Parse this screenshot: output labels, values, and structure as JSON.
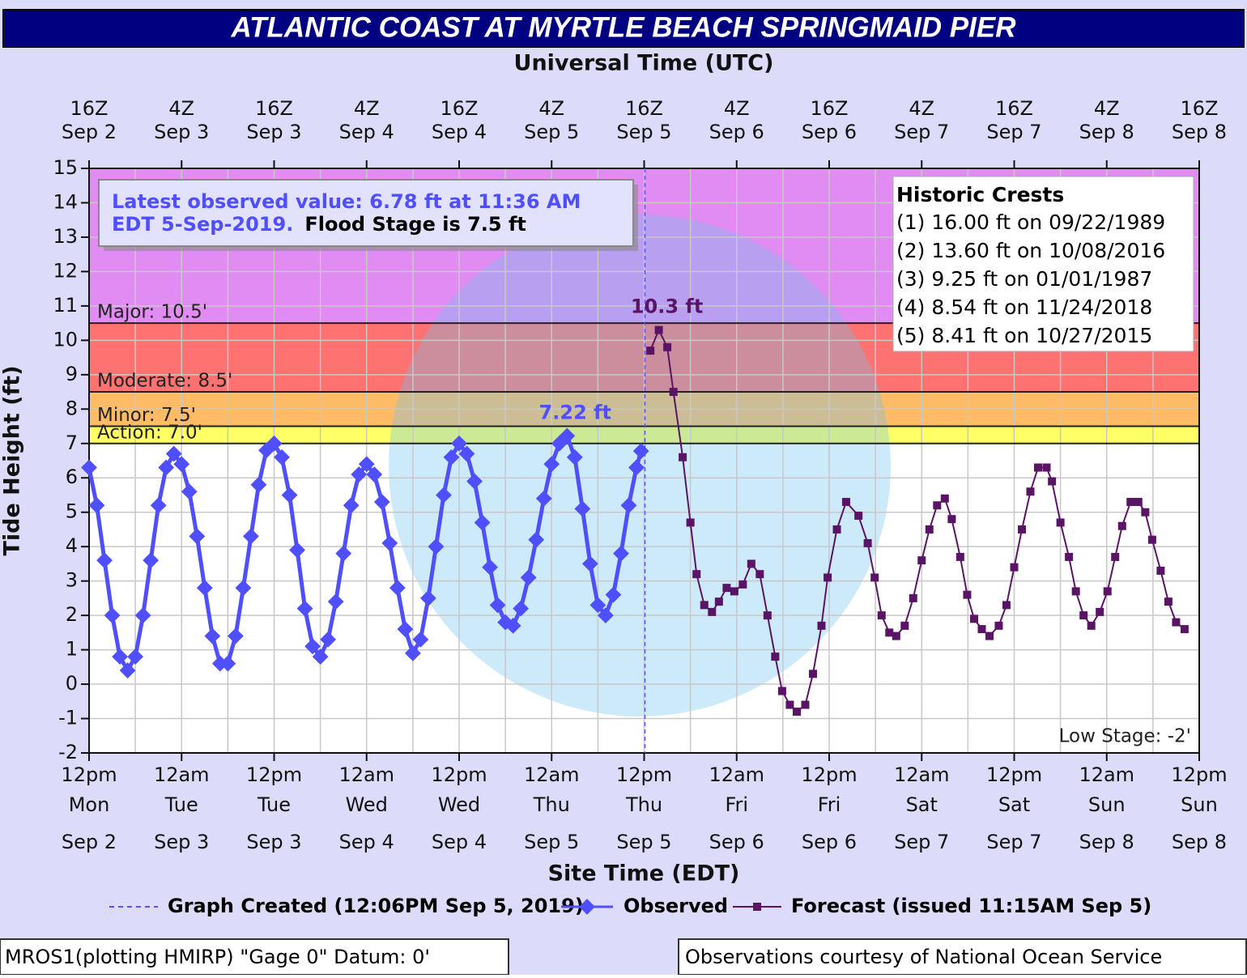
{
  "chart_data": {
    "type": "line",
    "title": "ATLANTIC COAST AT MYRTLE BEACH SPRINGMAID PIER",
    "x2_label": "Universal Time (UTC)",
    "x_label": "Site Time (EDT)",
    "y_label": "Tide Height (ft)",
    "xlim": [
      0,
      144
    ],
    "xticks": [
      {
        "value": 0,
        "label": [
          "12pm",
          "Mon",
          "Sep 2"
        ]
      },
      {
        "value": 12,
        "label": [
          "12am",
          "Tue",
          "Sep 3"
        ]
      },
      {
        "value": 24,
        "label": [
          "12pm",
          "Tue",
          "Sep 3"
        ]
      },
      {
        "value": 36,
        "label": [
          "12am",
          "Wed",
          "Sep 4"
        ]
      },
      {
        "value": 48,
        "label": [
          "12pm",
          "Wed",
          "Sep 4"
        ]
      },
      {
        "value": 60,
        "label": [
          "12am",
          "Thu",
          "Sep 5"
        ]
      },
      {
        "value": 72,
        "label": [
          "12pm",
          "Thu",
          "Sep 5"
        ]
      },
      {
        "value": 84,
        "label": [
          "12am",
          "Fri",
          "Sep 6"
        ]
      },
      {
        "value": 96,
        "label": [
          "12pm",
          "Fri",
          "Sep 6"
        ]
      },
      {
        "value": 108,
        "label": [
          "12am",
          "Sat",
          "Sep 7"
        ]
      },
      {
        "value": 120,
        "label": [
          "12pm",
          "Sat",
          "Sep 7"
        ]
      },
      {
        "value": 132,
        "label": [
          "12am",
          "Sun",
          "Sep 8"
        ]
      },
      {
        "value": 144,
        "label": [
          "12pm",
          "Sun",
          "Sep 8"
        ]
      }
    ],
    "x2ticks": [
      {
        "value": 0,
        "label": [
          "16Z",
          "Sep 2"
        ]
      },
      {
        "value": 12,
        "label": [
          "4Z",
          "Sep 3"
        ]
      },
      {
        "value": 24,
        "label": [
          "16Z",
          "Sep 3"
        ]
      },
      {
        "value": 36,
        "label": [
          "4Z",
          "Sep 4"
        ]
      },
      {
        "value": 48,
        "label": [
          "16Z",
          "Sep 4"
        ]
      },
      {
        "value": 60,
        "label": [
          "4Z",
          "Sep 5"
        ]
      },
      {
        "value": 72,
        "label": [
          "16Z",
          "Sep 5"
        ]
      },
      {
        "value": 84,
        "label": [
          "4Z",
          "Sep 6"
        ]
      },
      {
        "value": 96,
        "label": [
          "16Z",
          "Sep 6"
        ]
      },
      {
        "value": 108,
        "label": [
          "4Z",
          "Sep 7"
        ]
      },
      {
        "value": 120,
        "label": [
          "16Z",
          "Sep 7"
        ]
      },
      {
        "value": 132,
        "label": [
          "4Z",
          "Sep 8"
        ]
      },
      {
        "value": 144,
        "label": [
          "16Z",
          "Sep 8"
        ]
      }
    ],
    "x_grid": [
      6,
      18,
      30,
      42,
      54,
      66,
      78,
      90,
      102,
      114,
      126,
      138
    ],
    "ylim": [
      -2,
      15
    ],
    "yticks": [
      -2,
      -1,
      0,
      1,
      2,
      3,
      4,
      5,
      6,
      7,
      8,
      9,
      10,
      11,
      12,
      13,
      14,
      15
    ],
    "grid": true,
    "flood_stages": [
      {
        "value": 7,
        "label": "Action: 7.0'",
        "color": "#ffff66"
      },
      {
        "value": 7.5,
        "label": "Minor: 7.5'",
        "color": "#ffbb66"
      },
      {
        "value": 8.5,
        "label": "Moderate: 8.5'",
        "color": "#ff7272"
      },
      {
        "value": 10.5,
        "label": "Major: 10.5'",
        "color": "#e08cf2"
      }
    ],
    "low_stage": {
      "value": -2,
      "label": "Low Stage: -2'"
    },
    "graph_created": {
      "x": 72.1,
      "label": "Graph Created (12:06PM Sep 5, 2019)",
      "color": "#5555ff"
    },
    "series": [
      {
        "name": "Observed",
        "color": "#4f4fff",
        "marker": "diamond",
        "x": [
          0,
          1,
          2,
          3,
          4,
          5,
          6,
          7,
          8,
          9,
          10,
          11,
          12,
          13,
          14,
          15,
          16,
          17,
          18,
          19,
          20,
          21,
          22,
          23,
          24,
          25,
          26,
          27,
          28,
          29,
          30,
          31,
          32,
          33,
          34,
          35,
          36,
          37,
          38,
          39,
          40,
          41,
          42,
          43,
          44,
          45,
          46,
          47,
          48,
          49,
          50,
          51,
          52,
          53,
          54,
          55,
          56,
          57,
          58,
          59,
          60,
          61,
          62,
          63,
          64,
          65,
          66,
          67,
          68,
          69,
          70,
          71,
          71.6
        ],
        "values": [
          6.3,
          5.2,
          3.6,
          2.0,
          0.8,
          0.4,
          0.8,
          2.0,
          3.6,
          5.2,
          6.3,
          6.7,
          6.4,
          5.6,
          4.3,
          2.8,
          1.4,
          0.6,
          0.6,
          1.4,
          2.8,
          4.3,
          5.8,
          6.8,
          7.0,
          6.6,
          5.5,
          3.9,
          2.2,
          1.1,
          0.8,
          1.3,
          2.4,
          3.8,
          5.2,
          6.1,
          6.4,
          6.1,
          5.3,
          4.1,
          2.8,
          1.6,
          0.9,
          1.3,
          2.5,
          4.0,
          5.5,
          6.6,
          7.0,
          6.7,
          5.9,
          4.7,
          3.4,
          2.3,
          1.8,
          1.7,
          2.2,
          3.1,
          4.2,
          5.4,
          6.4,
          7.0,
          7.22,
          6.6,
          5.1,
          3.5,
          2.3,
          2.0,
          2.6,
          3.8,
          5.2,
          6.3,
          6.78
        ],
        "value_labels": [
          null,
          null,
          null,
          null,
          null,
          null,
          null,
          null,
          null,
          null,
          null,
          null,
          null,
          null,
          null,
          null,
          null,
          null,
          null,
          null,
          null,
          null,
          null,
          null,
          null,
          null,
          null,
          null,
          null,
          null,
          null,
          null,
          null,
          null,
          null,
          null,
          null,
          null,
          null,
          null,
          null,
          null,
          null,
          null,
          null,
          null,
          null,
          null,
          null,
          null,
          null,
          null,
          null,
          null,
          null,
          null,
          null,
          null,
          null,
          null,
          null,
          null,
          "7.22 ft",
          null,
          null,
          null,
          null,
          null,
          null,
          null,
          null,
          null,
          null
        ]
      },
      {
        "name": "Forecast (issued 11:15AM Sep 5)",
        "color": "#5a1465",
        "marker": "square",
        "x": [
          72.8,
          73.9,
          75.0,
          75.8,
          77.0,
          78.0,
          78.8,
          79.8,
          80.8,
          81.7,
          82.7,
          83.7,
          84.8,
          85.9,
          87.0,
          88.0,
          89.0,
          89.9,
          90.9,
          91.8,
          92.9,
          93.9,
          95.0,
          95.8,
          97.0,
          98.2,
          99.8,
          101.0,
          101.9,
          102.8,
          103.8,
          104.7,
          105.8,
          106.9,
          108.0,
          109.0,
          110.0,
          111.0,
          111.9,
          113.0,
          113.9,
          114.8,
          115.8,
          116.8,
          118.0,
          119.0,
          120.0,
          121.0,
          122.1,
          123.1,
          124.2,
          124.9,
          126.0,
          127.1,
          128.0,
          129.0,
          130.0,
          131.1,
          132.1,
          133.1,
          134.0,
          135.1,
          136.1,
          137.0,
          137.9,
          139.0,
          140.0,
          141.0,
          142.1
        ],
        "values": [
          9.7,
          10.3,
          9.8,
          8.5,
          6.6,
          4.7,
          3.2,
          2.3,
          2.1,
          2.4,
          2.8,
          2.7,
          2.9,
          3.5,
          3.2,
          2.0,
          0.8,
          -0.2,
          -0.6,
          -0.8,
          -0.6,
          0.3,
          1.7,
          3.1,
          4.5,
          5.3,
          4.9,
          4.1,
          3.1,
          2.0,
          1.5,
          1.4,
          1.7,
          2.5,
          3.6,
          4.5,
          5.2,
          5.4,
          4.8,
          3.7,
          2.6,
          1.9,
          1.6,
          1.4,
          1.7,
          2.3,
          3.4,
          4.5,
          5.6,
          6.3,
          6.3,
          5.9,
          4.7,
          3.7,
          2.7,
          2.0,
          1.7,
          2.1,
          2.7,
          3.7,
          4.6,
          5.3,
          5.3,
          5.0,
          4.2,
          3.3,
          2.4,
          1.8,
          1.6
        ],
        "value_labels": [
          null,
          "10.3 ft",
          null,
          null,
          null,
          null,
          null,
          null,
          null,
          null,
          null,
          null,
          null,
          null,
          null,
          null,
          null,
          null,
          null,
          null,
          null,
          null,
          null,
          null,
          null,
          null,
          null,
          null,
          null,
          null,
          null,
          null,
          null,
          null,
          null,
          null,
          null,
          null,
          null,
          null,
          null,
          null,
          null,
          null,
          null,
          null,
          null,
          null,
          null,
          null,
          null,
          null,
          null,
          null,
          null,
          null,
          null,
          null,
          null,
          null,
          null,
          null,
          null,
          null,
          null,
          null,
          null,
          null,
          null
        ]
      }
    ],
    "info_box": {
      "line1": "Latest observed value: 6.78 ft at 11:36 AM",
      "line2": "EDT 5-Sep-2019.",
      "flood_stage": "Flood Stage is 7.5 ft"
    },
    "historic_crests": {
      "title": "Historic Crests",
      "items": [
        "(1) 16.00 ft on 09/22/1989",
        "(2) 13.60 ft on 10/08/2016",
        "(3) 9.25 ft on 01/01/1987",
        "(4) 8.54 ft on 11/24/2018",
        "(5) 8.41 ft on 10/27/2015"
      ]
    },
    "footer": {
      "left": "MROS1(plotting HMIRP) \"Gage 0\" Datum: 0'",
      "right": "Observations courtesy of National Ocean Service"
    }
  }
}
